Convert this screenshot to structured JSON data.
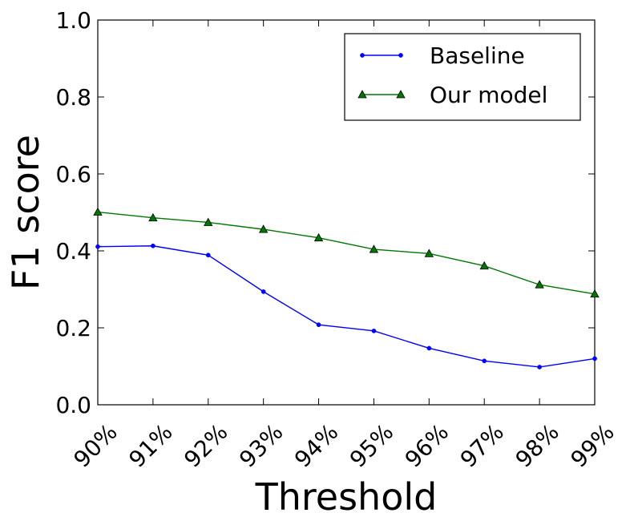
{
  "chart_data": {
    "type": "line",
    "categories": [
      "90%",
      "91%",
      "92%",
      "93%",
      "94%",
      "95%",
      "96%",
      "97%",
      "98%",
      "99%"
    ],
    "series": [
      {
        "name": "Baseline",
        "color": "#0000ff",
        "marker": "circle",
        "values": [
          0.411,
          0.413,
          0.389,
          0.294,
          0.208,
          0.192,
          0.147,
          0.114,
          0.098,
          0.12
        ]
      },
      {
        "name": "Our model",
        "color": "#007700",
        "marker": "triangle",
        "values": [
          0.501,
          0.486,
          0.474,
          0.456,
          0.434,
          0.404,
          0.393,
          0.361,
          0.312,
          0.288
        ]
      }
    ],
    "title": "",
    "xlabel": "Threshold",
    "ylabel": "F1 score",
    "ylim": [
      0.0,
      1.0
    ],
    "yticks": [
      0.0,
      0.2,
      0.4,
      0.6,
      0.8,
      1.0
    ],
    "ytick_labels": [
      "0.0",
      "0.2",
      "0.4",
      "0.6",
      "0.8",
      "1.0"
    ],
    "grid": false,
    "legend_position": "top-right"
  }
}
